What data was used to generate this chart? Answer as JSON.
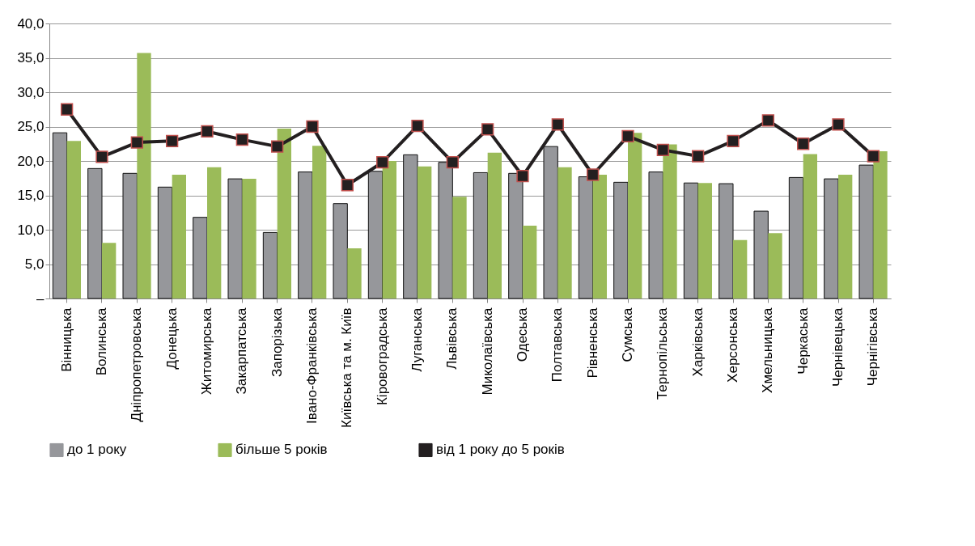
{
  "chart_data": {
    "type": "bar",
    "categories": [
      "Вінницька",
      "Волинська",
      "Дніпропетровська",
      "Донецька",
      "Житомирська",
      "Закарпатська",
      "Запорізька",
      "Івано-Франківська",
      "Київська та м. Київ",
      "Кіровоградська",
      "Луганська",
      "Львівська",
      "Миколаївська",
      "Одеська",
      "Полтавська",
      "Рівненська",
      "Сумська",
      "Тернопільська",
      "Харківська",
      "Херсонська",
      "Хмельницька",
      "Черкаська",
      "Чернівецька",
      "Чернігівська"
    ],
    "series": [
      {
        "name": "до 1 року",
        "color": "#96979b",
        "values": [
          24.1,
          18.9,
          18.2,
          16.2,
          11.8,
          17.4,
          9.6,
          18.4,
          13.8,
          18.5,
          20.9,
          19.8,
          18.3,
          18.2,
          22.1,
          17.7,
          16.9,
          18.4,
          16.8,
          16.7,
          12.7,
          17.6,
          17.4,
          19.4
        ]
      },
      {
        "name": "більше 5 років",
        "color": "#9bbb59",
        "values": [
          22.9,
          8.1,
          35.7,
          18.0,
          19.1,
          17.4,
          24.7,
          22.2,
          7.3,
          20.0,
          19.2,
          14.8,
          21.2,
          10.6,
          19.1,
          18.0,
          24.1,
          22.4,
          16.8,
          8.5,
          9.5,
          21.0,
          18.0,
          21.4
        ]
      },
      {
        "name": "від  1 року до 5 років",
        "type": "line",
        "color": "#231f20",
        "marker": "square",
        "values": [
          27.5,
          20.6,
          22.7,
          22.9,
          24.3,
          23.1,
          22.1,
          25.0,
          16.5,
          19.8,
          25.1,
          19.8,
          24.6,
          17.8,
          25.3,
          18.0,
          23.6,
          21.6,
          20.7,
          22.9,
          25.9,
          22.5,
          25.3,
          20.7
        ]
      }
    ],
    "ylim": [
      0,
      40
    ],
    "yticks": [
      {
        "value": 0,
        "label": "–"
      },
      {
        "value": 5,
        "label": "5,0"
      },
      {
        "value": 10,
        "label": "10,0"
      },
      {
        "value": 15,
        "label": "15,0"
      },
      {
        "value": 20,
        "label": "20,0"
      },
      {
        "value": 25,
        "label": "25,0"
      },
      {
        "value": 30,
        "label": "30,0"
      },
      {
        "value": 35,
        "label": "35,0"
      },
      {
        "value": 40,
        "label": "40,0"
      }
    ],
    "grid": "y",
    "legend": "bottom"
  }
}
